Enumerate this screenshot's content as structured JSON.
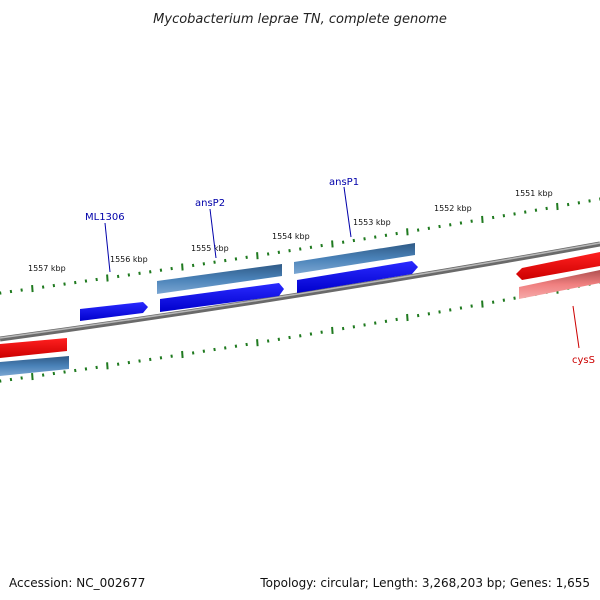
{
  "title": "Mycobacterium leprae TN, complete genome",
  "footer": {
    "accession": "Accession: NC_002677",
    "summary": "Topology: circular; Length: 3,268,203 bp; Genes: 1,655"
  },
  "colors": {
    "backbone": "#8c8c8c",
    "ticks": "#1f7a1f",
    "forward_gene": "#0000ee",
    "forward_cds": "#3f6f9f",
    "other_gene": "#ff0000",
    "other_cds": "#f08080",
    "label_blue": "#0000aa",
    "label_red": "#cc0000"
  },
  "tick_labels": [
    "1551 kbp",
    "1552 kbp",
    "1553 kbp",
    "1554 kbp",
    "1555 kbp",
    "1556 kbp",
    "1557 kbp"
  ],
  "genes": [
    {
      "name": "ML1306",
      "color": "label_blue"
    },
    {
      "name": "ansP2",
      "color": "label_blue"
    },
    {
      "name": "ansP1",
      "color": "label_blue"
    },
    {
      "name": "cysS",
      "color": "label_red"
    }
  ]
}
